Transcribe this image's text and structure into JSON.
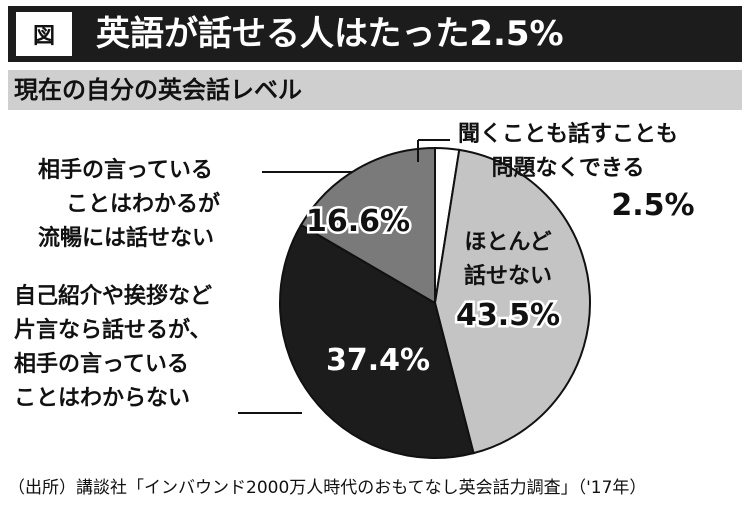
{
  "header": {
    "figure_label": "図",
    "title": "英語が話せる人はたった2.5%",
    "subtitle": "現在の自分の英会話レベル"
  },
  "chart_data": {
    "type": "pie",
    "title": "現在の自分の英会話レベル",
    "slices": [
      {
        "lines": [
          "聞くことも話すことも",
          "問題なくできる"
        ],
        "value": 2.5,
        "value_label": "2.5%",
        "color": "#ffffff"
      },
      {
        "lines": [
          "ほとんど",
          "話せない"
        ],
        "value": 43.5,
        "value_label": "43.5%",
        "color": "#c4c4c4"
      },
      {
        "lines": [
          "自己紹介や挨拶など",
          "片言なら話せるが、",
          "相手の言っている",
          "ことはわからない"
        ],
        "value": 37.4,
        "value_label": "37.4%",
        "color": "#1c1c1c"
      },
      {
        "lines": [
          "相手の言っている",
          "ことはわかるが",
          "流暢には話せない"
        ],
        "value": 16.6,
        "value_label": "16.6%",
        "color": "#7a7a7a"
      }
    ]
  },
  "source": "（出所）講談社「インバウンド2000万人時代のおもてなし英会話力調査」（'17年）"
}
